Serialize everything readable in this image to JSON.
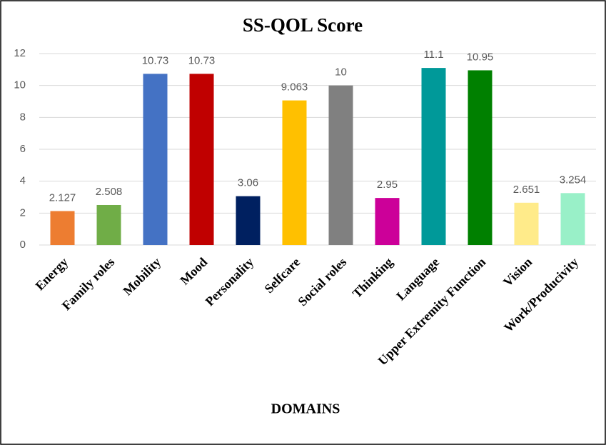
{
  "chart_data": {
    "type": "bar",
    "title": "SS-QOL Score",
    "x_label": "DOMAINS",
    "categories": [
      "Energy",
      "Family roles",
      "Mobility",
      "Mood",
      "Personality",
      "Selfcare",
      "Social roles",
      "Thinking",
      "Language",
      "Upper Extremity Function",
      "Vision",
      "Work/Producivity"
    ],
    "values": [
      2.127,
      2.508,
      10.73,
      10.73,
      3.06,
      9.063,
      10,
      2.95,
      11.1,
      10.95,
      2.651,
      3.254
    ],
    "colors": [
      "#ed7d31",
      "#70ad47",
      "#4472c4",
      "#c00000",
      "#002060",
      "#ffc000",
      "#808080",
      "#cc0099",
      "#009999",
      "#008000",
      "#ffeb8a",
      "#99f0c8"
    ],
    "ylim": [
      0,
      12
    ],
    "yticks": [
      0,
      2,
      4,
      6,
      8,
      10,
      12
    ],
    "grid": true
  }
}
